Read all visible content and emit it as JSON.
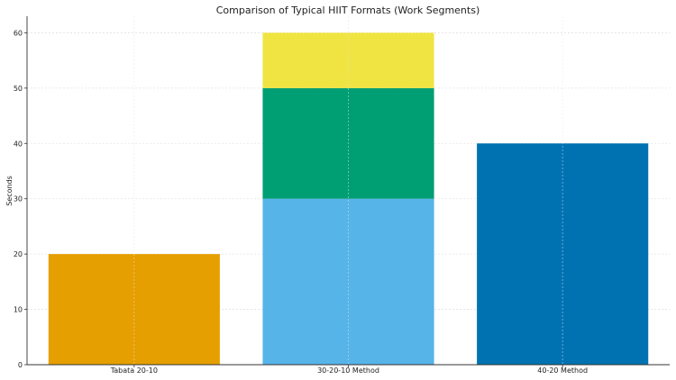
{
  "chart_data": {
    "type": "bar",
    "stacked": true,
    "title": "Comparison of Typical HIIT Formats (Work Segments)",
    "xlabel": "",
    "ylabel": "Seconds",
    "ylim": [
      0,
      63
    ],
    "yticks": [
      0,
      10,
      20,
      30,
      40,
      50,
      60
    ],
    "grid": true,
    "categories": [
      "Tabata 20-10",
      "30-20-10 Method",
      "40-20 Method"
    ],
    "bars": [
      {
        "category": "Tabata 20-10",
        "segments": [
          {
            "value": 20,
            "color": "#E69F00"
          }
        ]
      },
      {
        "category": "30-20-10 Method",
        "segments": [
          {
            "value": 30,
            "color": "#56B4E9"
          },
          {
            "value": 20,
            "color": "#009E73"
          },
          {
            "value": 10,
            "color": "#F0E442"
          }
        ]
      },
      {
        "category": "40-20 Method",
        "segments": [
          {
            "value": 40,
            "color": "#0072B2"
          }
        ]
      }
    ]
  }
}
